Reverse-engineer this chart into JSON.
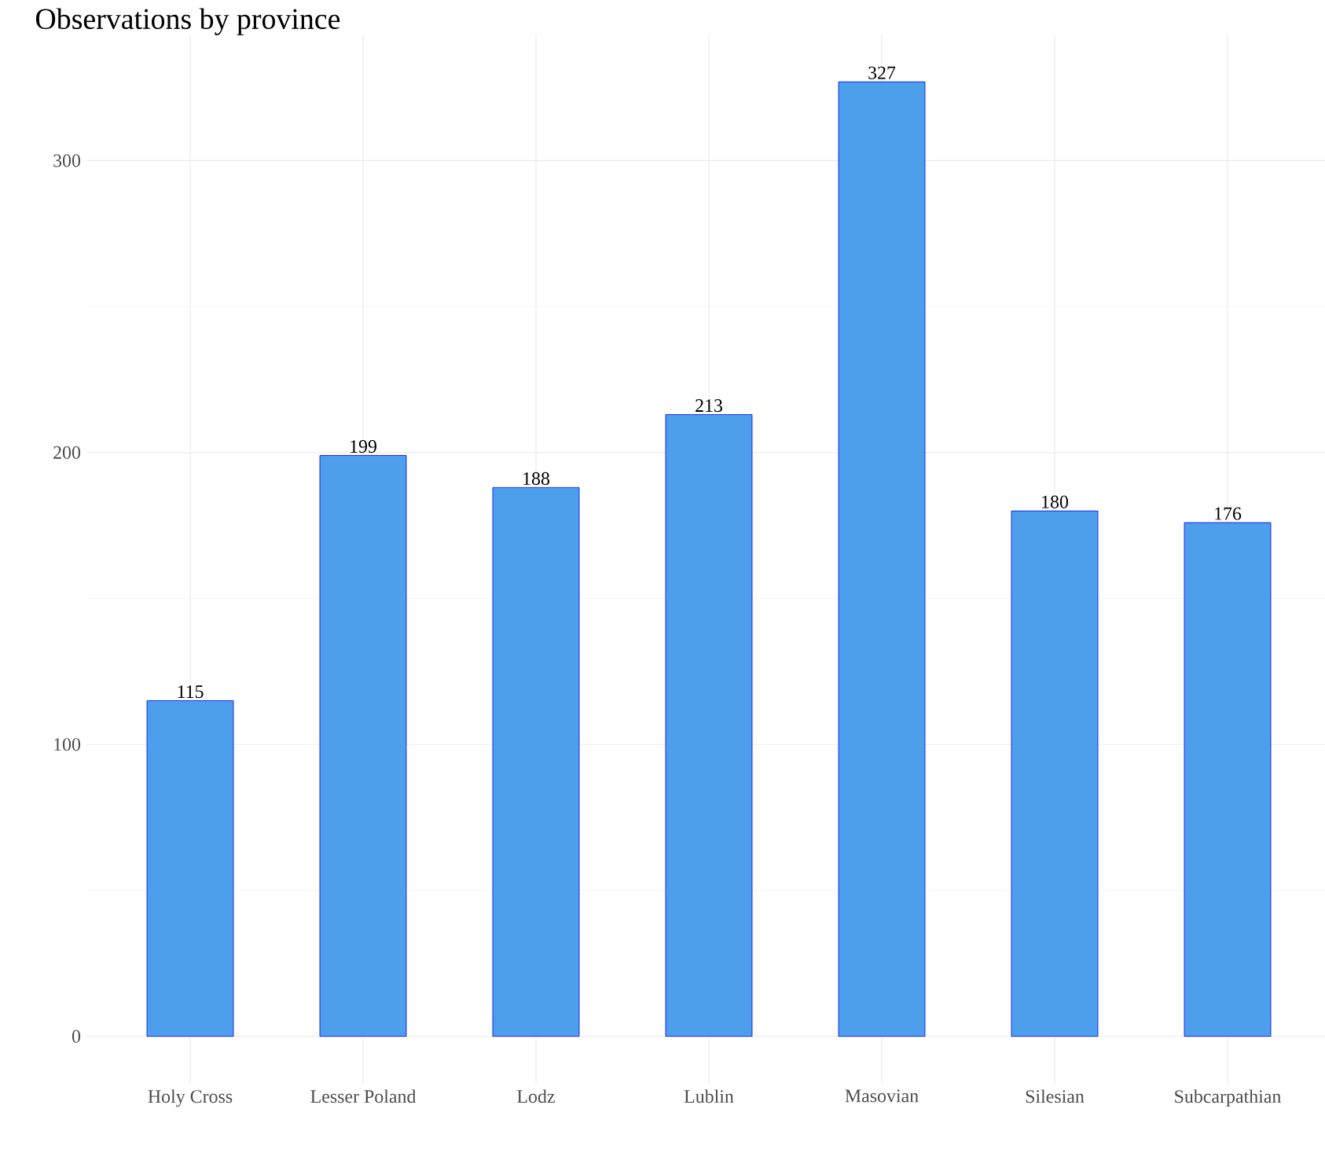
{
  "chart_data": {
    "type": "bar",
    "title": "Observations by province",
    "categories": [
      "Holy Cross",
      "Lesser Poland",
      "Lodz",
      "Lublin",
      "Masovian",
      "Silesian",
      "Subcarpathian"
    ],
    "values": [
      115,
      199,
      188,
      213,
      327,
      180,
      176
    ],
    "color": "#4d9fec",
    "ylim": [
      -16.35,
      343.35
    ],
    "yticks": [
      0,
      100,
      200,
      300
    ],
    "grid": true,
    "data_labels": true
  }
}
